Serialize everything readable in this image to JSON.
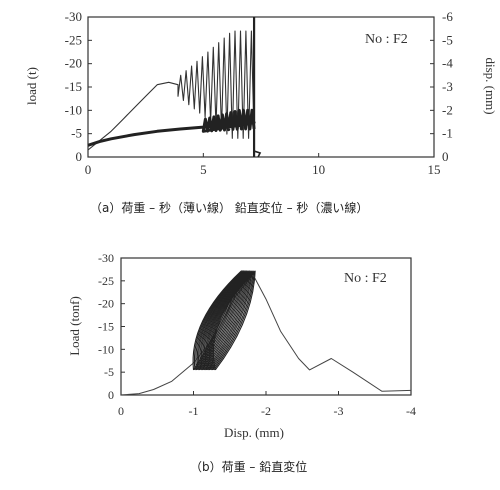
{
  "chart_data": [
    {
      "type": "line",
      "id": "a",
      "annotation": "No : F2",
      "xlim": [
        0,
        15
      ],
      "x_ticks": [
        "0",
        "5",
        "10",
        "15"
      ],
      "y_left": {
        "label": "load (t)",
        "lim": [
          0,
          -30
        ],
        "ticks": [
          "0",
          "-5",
          "-10",
          "-15",
          "-20",
          "-25",
          "-30"
        ]
      },
      "y_right": {
        "label": "disp. (mm)",
        "lim": [
          0,
          -6
        ],
        "ticks": [
          "0",
          "-1",
          "-2",
          "-3",
          "-4",
          "-5",
          "-6"
        ]
      },
      "series": [
        {
          "style": "thin",
          "x": [
            0,
            0.5,
            1.0,
            1.5,
            2.0,
            2.5,
            3.0,
            3.5,
            3.9
          ],
          "y": [
            -1.5,
            -3.5,
            -5.5,
            -8.0,
            -10.5,
            -13.0,
            -15.5,
            -16.0,
            -15.5
          ],
          "cycles": {
            "x_start": 3.9,
            "x_end": 7.2,
            "count": 14,
            "y_high": [
              -17,
              -27
            ],
            "y_low": [
              -13,
              -4
            ]
          }
        },
        {
          "style": "thick",
          "x": [
            0,
            0.5,
            1,
            2,
            3,
            4,
            5,
            6,
            7,
            7.2
          ],
          "y": [
            -2.5,
            -3.3,
            -3.9,
            -4.8,
            -5.5,
            -6.0,
            -6.4,
            -6.9,
            -7.2,
            -7.4
          ],
          "cycles": {
            "x_start": 5.0,
            "x_end": 7.2,
            "count": 12,
            "y_high": [
              -8,
              -10
            ],
            "y_low": [
              -5.5,
              -6
            ]
          }
        }
      ],
      "vertical_drop_at_x": 7.2,
      "caption": "（a）荷重 – 秒（薄い線）   鉛直変位 – 秒（濃い線）"
    },
    {
      "type": "line",
      "id": "b",
      "annotation": "No : F2",
      "xlabel": "Disp. (mm)",
      "ylabel": "Load (tonf)",
      "xlim": [
        0,
        -4
      ],
      "ylim": [
        0,
        -30
      ],
      "x_ticks": [
        "0",
        "-1",
        "-2",
        "-3",
        "-4"
      ],
      "y_ticks": [
        "0",
        "-5",
        "-10",
        "-15",
        "-20",
        "-25",
        "-30"
      ],
      "envelope": {
        "x": [
          0,
          -0.25,
          -0.45,
          -0.7,
          -1.0,
          -1.3,
          -1.55,
          -1.8,
          -1.85,
          -2.0,
          -2.2,
          -2.45,
          -2.6,
          -2.9,
          -3.2,
          -3.6,
          -4.0
        ],
        "y": [
          0,
          -0.3,
          -1.2,
          -3.0,
          -7.0,
          -13.0,
          -21.0,
          -26.0,
          -25.5,
          -21.0,
          -14.0,
          -8.0,
          -5.5,
          -8.0,
          -5.0,
          -0.8,
          -1.0
        ]
      },
      "hysteresis_loops": {
        "count": 16,
        "x_lower": [
          -1.0,
          -1.3
        ],
        "x_upper": [
          -1.65,
          -1.85
        ],
        "y_lower": -5.5,
        "y_upper": -27.0
      },
      "caption": "（b）荷重 – 鉛直変位"
    }
  ]
}
